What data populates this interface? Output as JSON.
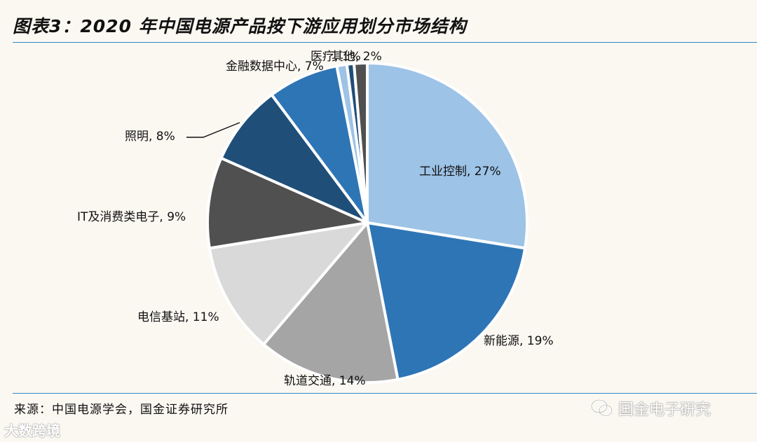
{
  "title": "图表3：2020 年中国电源产品按下游应用划分市场结构",
  "source": "来源：中国电源学会，国金证券研究所",
  "watermarks": {
    "left_text": "大数跨境",
    "right_text": "国金电子研究",
    "right_icon": "wechat-icon"
  },
  "chart_data": {
    "type": "pie",
    "slices": [
      {
        "label": "工业控制, 27%",
        "value": 27,
        "color": "#9dc3e6"
      },
      {
        "label": "新能源, 19%",
        "value": 19,
        "color": "#2e75b6"
      },
      {
        "label": "轨道交通, 14%",
        "value": 14,
        "color": "#a5a5a5"
      },
      {
        "label": "电信基站, 11%",
        "value": 11,
        "color": "#d9d9d9"
      },
      {
        "label": "IT及消费类电子, 9%",
        "value": 9,
        "color": "#505050"
      },
      {
        "label": "照明, 8%",
        "value": 8,
        "color": "#1f4e79"
      },
      {
        "label": "金融数据中心, 7%",
        "value": 7,
        "color": "#2e75b6"
      },
      {
        "label": "医疗, 1%",
        "value": 1,
        "color": "#9dc3e6"
      },
      {
        "label": "其他, 2%",
        "value": 2,
        "color": "#1f4e79",
        "extra_color": "#505050"
      }
    ],
    "start": "12 o'clock",
    "direction": "clockwise"
  }
}
